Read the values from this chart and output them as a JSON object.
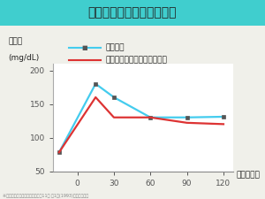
{
  "title": "食後の血糖値上昇抑制作用",
  "title_bg_color": "#40cece",
  "title_text_color": "#222222",
  "ylabel_line1": "血糖値",
  "ylabel_line2": "(mg/dL)",
  "xlabel": "時間（分）",
  "x_tea_only": [
    -15,
    15,
    30,
    60,
    90,
    120
  ],
  "y_tea_only": [
    78,
    180,
    160,
    130,
    130,
    131
  ],
  "x_tea_dextrin": [
    -15,
    15,
    30,
    60,
    90,
    120
  ],
  "y_tea_dextrin": [
    78,
    160,
    130,
    130,
    122,
    120
  ],
  "color_tea_only": "#44ccee",
  "color_tea_dextrin": "#dd3333",
  "legend_tea_only": "お茶のみ",
  "legend_tea_dextrin": "お茶＋難消化性デキストリン",
  "xlim": [
    -20,
    128
  ],
  "ylim": [
    50,
    210
  ],
  "yticks": [
    50,
    100,
    150,
    200
  ],
  "xticks": [
    0,
    30,
    60,
    90,
    120
  ],
  "footnote": "※日本食物繊維協会研究会誌、第11巻 第1号(1993)より要薦作成",
  "bg_color": "#f0f0ea",
  "plot_bg_color": "#ffffff"
}
